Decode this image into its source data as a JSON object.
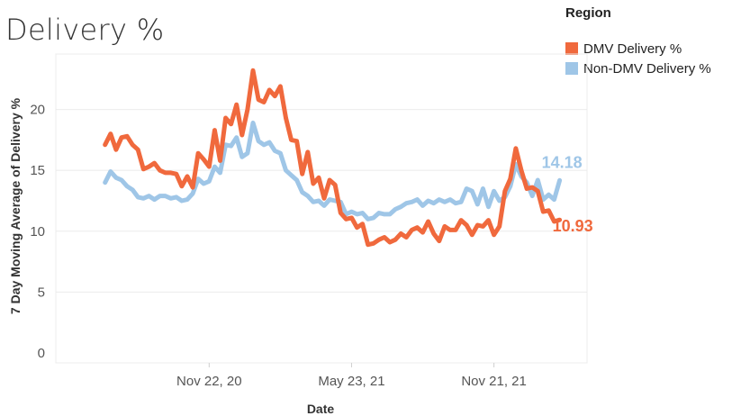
{
  "page": {
    "title": "Delivery %"
  },
  "legend": {
    "title": "Region",
    "items": [
      {
        "label": "DMV Delivery %",
        "color": "#f0693d"
      },
      {
        "label": "Non-DMV Delivery %",
        "color": "#9fc6e7"
      }
    ]
  },
  "chart_data": {
    "type": "line",
    "xlabel": "Date",
    "ylabel": "7 Day Moving Average of Delivery %",
    "ylim": [
      0,
      23
    ],
    "yticks": [
      0,
      5,
      10,
      15,
      20
    ],
    "xlim": [
      "2020-05-10",
      "2022-03-20"
    ],
    "xticks": [
      {
        "date": "2020-11-22",
        "label": "Nov 22, 20"
      },
      {
        "date": "2021-05-23",
        "label": "May 23, 21"
      },
      {
        "date": "2021-11-21",
        "label": "Nov 21, 21"
      }
    ],
    "grid": true,
    "legend": "top-right",
    "series": [
      {
        "name": "DMV Delivery %",
        "color": "#f0693d",
        "end_label": "10.93",
        "points": [
          [
            "2020-07-12",
            17.1
          ],
          [
            "2020-07-19",
            18.0
          ],
          [
            "2020-07-26",
            16.7
          ],
          [
            "2020-08-02",
            17.7
          ],
          [
            "2020-08-09",
            17.8
          ],
          [
            "2020-08-16",
            17.1
          ],
          [
            "2020-08-23",
            16.7
          ],
          [
            "2020-08-30",
            15.1
          ],
          [
            "2020-09-06",
            15.3
          ],
          [
            "2020-09-13",
            15.6
          ],
          [
            "2020-09-20",
            15.0
          ],
          [
            "2020-09-27",
            14.8
          ],
          [
            "2020-10-04",
            14.8
          ],
          [
            "2020-10-11",
            14.7
          ],
          [
            "2020-10-18",
            13.7
          ],
          [
            "2020-10-25",
            14.5
          ],
          [
            "2020-11-01",
            13.6
          ],
          [
            "2020-11-08",
            16.4
          ],
          [
            "2020-11-15",
            15.9
          ],
          [
            "2020-11-22",
            15.3
          ],
          [
            "2020-11-29",
            18.3
          ],
          [
            "2020-12-06",
            15.8
          ],
          [
            "2020-12-13",
            19.3
          ],
          [
            "2020-12-20",
            18.8
          ],
          [
            "2020-12-27",
            20.4
          ],
          [
            "2021-01-03",
            17.9
          ],
          [
            "2021-01-10",
            20.0
          ],
          [
            "2021-01-17",
            23.2
          ],
          [
            "2021-01-24",
            20.8
          ],
          [
            "2021-01-31",
            20.6
          ],
          [
            "2021-02-07",
            21.6
          ],
          [
            "2021-02-14",
            21.1
          ],
          [
            "2021-02-21",
            21.9
          ],
          [
            "2021-02-28",
            19.3
          ],
          [
            "2021-03-07",
            17.5
          ],
          [
            "2021-03-14",
            17.4
          ],
          [
            "2021-03-21",
            14.7
          ],
          [
            "2021-03-28",
            16.5
          ],
          [
            "2021-04-04",
            13.9
          ],
          [
            "2021-04-11",
            14.4
          ],
          [
            "2021-04-18",
            12.7
          ],
          [
            "2021-04-25",
            14.2
          ],
          [
            "2021-05-02",
            13.8
          ],
          [
            "2021-05-09",
            11.5
          ],
          [
            "2021-05-16",
            11.0
          ],
          [
            "2021-05-23",
            11.1
          ],
          [
            "2021-05-30",
            10.3
          ],
          [
            "2021-06-06",
            10.6
          ],
          [
            "2021-06-13",
            8.9
          ],
          [
            "2021-06-20",
            9.0
          ],
          [
            "2021-06-27",
            9.3
          ],
          [
            "2021-07-04",
            9.5
          ],
          [
            "2021-07-11",
            9.1
          ],
          [
            "2021-07-18",
            9.3
          ],
          [
            "2021-07-25",
            9.8
          ],
          [
            "2021-08-01",
            9.5
          ],
          [
            "2021-08-08",
            10.1
          ],
          [
            "2021-08-15",
            10.3
          ],
          [
            "2021-08-22",
            9.9
          ],
          [
            "2021-08-29",
            10.8
          ],
          [
            "2021-09-05",
            9.8
          ],
          [
            "2021-09-12",
            9.2
          ],
          [
            "2021-09-19",
            10.4
          ],
          [
            "2021-09-26",
            10.1
          ],
          [
            "2021-10-03",
            10.1
          ],
          [
            "2021-10-10",
            10.9
          ],
          [
            "2021-10-17",
            10.5
          ],
          [
            "2021-10-24",
            9.7
          ],
          [
            "2021-10-31",
            10.5
          ],
          [
            "2021-11-07",
            10.4
          ],
          [
            "2021-11-14",
            10.9
          ],
          [
            "2021-11-21",
            9.7
          ],
          [
            "2021-11-28",
            10.4
          ],
          [
            "2021-12-05",
            13.3
          ],
          [
            "2021-12-12",
            14.3
          ],
          [
            "2021-12-19",
            16.8
          ],
          [
            "2021-12-26",
            15.0
          ],
          [
            "2022-01-02",
            13.5
          ],
          [
            "2022-01-09",
            13.6
          ],
          [
            "2022-01-16",
            13.3
          ],
          [
            "2022-01-23",
            11.6
          ],
          [
            "2022-01-30",
            11.7
          ],
          [
            "2022-02-06",
            10.8
          ],
          [
            "2022-02-13",
            10.93
          ]
        ]
      },
      {
        "name": "Non-DMV Delivery %",
        "color": "#9fc6e7",
        "end_label": "14.18",
        "points": [
          [
            "2020-07-12",
            14.0
          ],
          [
            "2020-07-19",
            14.9
          ],
          [
            "2020-07-26",
            14.4
          ],
          [
            "2020-08-02",
            14.2
          ],
          [
            "2020-08-09",
            13.7
          ],
          [
            "2020-08-16",
            13.4
          ],
          [
            "2020-08-23",
            12.8
          ],
          [
            "2020-08-30",
            12.7
          ],
          [
            "2020-09-06",
            12.9
          ],
          [
            "2020-09-13",
            12.6
          ],
          [
            "2020-09-20",
            12.9
          ],
          [
            "2020-09-27",
            12.9
          ],
          [
            "2020-10-04",
            12.7
          ],
          [
            "2020-10-11",
            12.8
          ],
          [
            "2020-10-18",
            12.5
          ],
          [
            "2020-10-25",
            12.6
          ],
          [
            "2020-11-01",
            13.1
          ],
          [
            "2020-11-08",
            14.3
          ],
          [
            "2020-11-15",
            13.9
          ],
          [
            "2020-11-22",
            14.1
          ],
          [
            "2020-11-29",
            15.3
          ],
          [
            "2020-12-06",
            14.8
          ],
          [
            "2020-12-13",
            17.1
          ],
          [
            "2020-12-20",
            17.0
          ],
          [
            "2020-12-27",
            17.7
          ],
          [
            "2021-01-03",
            16.1
          ],
          [
            "2021-01-10",
            16.4
          ],
          [
            "2021-01-17",
            18.9
          ],
          [
            "2021-01-24",
            17.4
          ],
          [
            "2021-01-31",
            17.1
          ],
          [
            "2021-02-07",
            17.3
          ],
          [
            "2021-02-14",
            16.6
          ],
          [
            "2021-02-21",
            16.4
          ],
          [
            "2021-02-28",
            15.0
          ],
          [
            "2021-03-07",
            14.6
          ],
          [
            "2021-03-14",
            14.2
          ],
          [
            "2021-03-21",
            13.2
          ],
          [
            "2021-03-28",
            12.9
          ],
          [
            "2021-04-04",
            12.4
          ],
          [
            "2021-04-11",
            12.5
          ],
          [
            "2021-04-18",
            12.1
          ],
          [
            "2021-04-25",
            12.6
          ],
          [
            "2021-05-02",
            12.5
          ],
          [
            "2021-05-09",
            12.4
          ],
          [
            "2021-05-16",
            11.4
          ],
          [
            "2021-05-23",
            11.6
          ],
          [
            "2021-05-30",
            11.4
          ],
          [
            "2021-06-06",
            11.5
          ],
          [
            "2021-06-13",
            11.0
          ],
          [
            "2021-06-20",
            11.1
          ],
          [
            "2021-06-27",
            11.5
          ],
          [
            "2021-07-04",
            11.4
          ],
          [
            "2021-07-11",
            11.4
          ],
          [
            "2021-07-18",
            11.8
          ],
          [
            "2021-07-25",
            12.0
          ],
          [
            "2021-08-01",
            12.3
          ],
          [
            "2021-08-08",
            12.4
          ],
          [
            "2021-08-15",
            12.6
          ],
          [
            "2021-08-22",
            12.1
          ],
          [
            "2021-08-29",
            12.5
          ],
          [
            "2021-09-05",
            12.3
          ],
          [
            "2021-09-12",
            12.6
          ],
          [
            "2021-09-19",
            12.4
          ],
          [
            "2021-09-26",
            12.6
          ],
          [
            "2021-10-03",
            12.3
          ],
          [
            "2021-10-10",
            12.4
          ],
          [
            "2021-10-17",
            13.5
          ],
          [
            "2021-10-24",
            13.3
          ],
          [
            "2021-10-31",
            12.2
          ],
          [
            "2021-11-07",
            13.5
          ],
          [
            "2021-11-14",
            12.0
          ],
          [
            "2021-11-21",
            13.3
          ],
          [
            "2021-11-28",
            12.5
          ],
          [
            "2021-12-05",
            12.8
          ],
          [
            "2021-12-12",
            13.7
          ],
          [
            "2021-12-19",
            15.5
          ],
          [
            "2021-12-26",
            14.5
          ],
          [
            "2022-01-02",
            14.0
          ],
          [
            "2022-01-09",
            12.9
          ],
          [
            "2022-01-16",
            14.2
          ],
          [
            "2022-01-23",
            12.6
          ],
          [
            "2022-01-30",
            13.0
          ],
          [
            "2022-02-06",
            12.6
          ],
          [
            "2022-02-13",
            14.18
          ]
        ]
      }
    ]
  }
}
